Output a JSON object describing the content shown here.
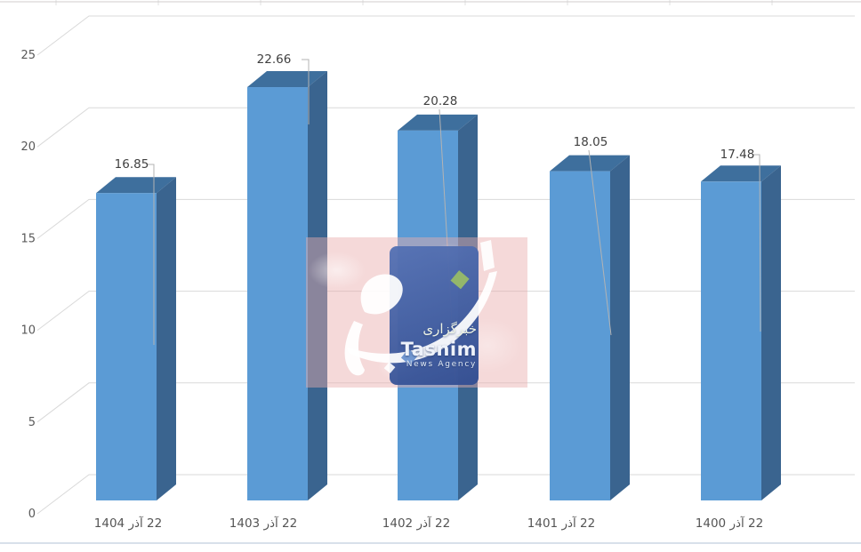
{
  "chart_data": {
    "type": "bar",
    "variant": "3d-column",
    "title": "",
    "categories": [
      "22 آذر 1404",
      "22 آذر 1403",
      "22 آذر 1402",
      "22 آذر 1401",
      "22 آذر 1400"
    ],
    "values": [
      16.85,
      22.66,
      20.28,
      18.05,
      17.48
    ],
    "xlabel": "",
    "ylabel": "",
    "ylim": [
      0,
      25
    ],
    "yticks": [
      0,
      5,
      10,
      15,
      20,
      25
    ],
    "grid": true,
    "legend": false,
    "colors": {
      "bar_front": "#5b9bd5",
      "bar_top": "#3e6f9d",
      "bar_side": "#3a648f",
      "gridline": "#d9d9d9",
      "axis_text": "#595959",
      "value_label_text": "#404040",
      "leader_line": "#b3b3b3",
      "bottom_rule": "#ccd6e4",
      "top_rule": "#e0dddd"
    }
  },
  "watermark": {
    "agency_fa": "خبرگزاری",
    "agency_en": "Tasnim",
    "agency_sub": "News Agency",
    "colors": {
      "overlay_pink": "#e9adad",
      "logo_panel_blue": "#3e5ea5",
      "calligraphy": "#ffffff",
      "accent_green": "#97bb67",
      "accent_blue": "#6a92cf"
    }
  }
}
